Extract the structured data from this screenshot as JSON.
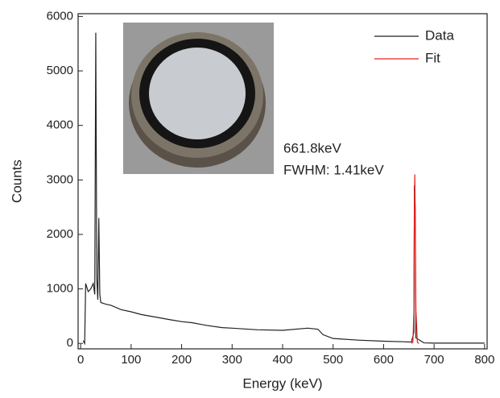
{
  "chart_data": {
    "type": "line",
    "xlabel": "Energy (keV)",
    "ylabel": "Counts",
    "annotations": [
      "661.8keV",
      "FWHM: 1.41keV"
    ],
    "xlim": [
      -5,
      805
    ],
    "ylim": [
      -100,
      6050
    ],
    "xticks": [
      0,
      100,
      200,
      300,
      400,
      500,
      600,
      700,
      800
    ],
    "yticks": [
      0,
      1000,
      2000,
      3000,
      4000,
      5000,
      6000
    ],
    "legend": "upper right",
    "series": [
      {
        "name": "Data",
        "color": "#222222",
        "x": [
          5,
          8,
          10,
          15,
          20,
          25,
          28,
          30,
          32,
          34,
          36,
          38,
          40,
          50,
          60,
          80,
          100,
          120,
          150,
          180,
          200,
          220,
          250,
          280,
          300,
          350,
          400,
          450,
          470,
          480,
          500,
          550,
          600,
          640,
          655,
          660,
          661,
          662.5,
          664,
          680,
          700,
          800
        ],
        "values": [
          50,
          0,
          1100,
          950,
          1000,
          1100,
          900,
          5700,
          1200,
          800,
          2300,
          900,
          750,
          720,
          700,
          620,
          580,
          530,
          480,
          430,
          400,
          380,
          330,
          290,
          280,
          250,
          240,
          280,
          260,
          160,
          90,
          60,
          40,
          30,
          25,
          200,
          2900,
          2500,
          100,
          10,
          5,
          5
        ]
      },
      {
        "name": "Fit",
        "color": "#e8211d",
        "x": [
          655,
          658,
          660,
          661,
          661.8,
          662.5,
          664,
          667,
          670
        ],
        "values": [
          0,
          20,
          600,
          2500,
          3100,
          2500,
          600,
          20,
          0
        ]
      }
    ]
  }
}
